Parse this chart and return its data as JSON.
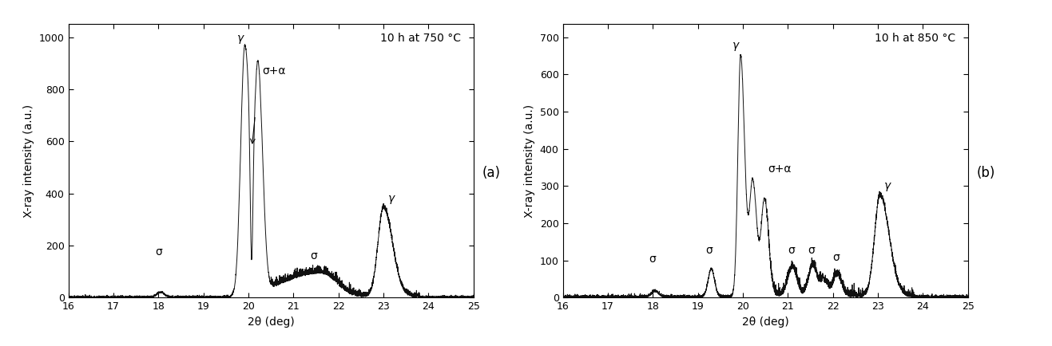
{
  "panel_a": {
    "title": "10 h at 750 °C",
    "xlabel": "2θ (deg)",
    "ylabel": "X-ray intensity (a.u.)",
    "xlim": [
      16,
      25
    ],
    "ylim": [
      0,
      1050
    ],
    "yticks": [
      0,
      200,
      400,
      600,
      800,
      1000
    ],
    "xticks": [
      16,
      17,
      18,
      19,
      20,
      21,
      22,
      23,
      24,
      25
    ]
  },
  "panel_b": {
    "title": "10 h at 850 °C",
    "xlabel": "2θ (deg)",
    "ylabel": "X-ray intensity (a.u.)",
    "xlim": [
      16,
      25
    ],
    "ylim": [
      0,
      735
    ],
    "yticks": [
      0,
      100,
      200,
      300,
      400,
      500,
      600,
      700
    ],
    "xticks": [
      16,
      17,
      18,
      19,
      20,
      21,
      22,
      23,
      24,
      25
    ]
  },
  "label_a": "(a)",
  "label_b": "(b)",
  "background_color": "#ffffff",
  "line_color": "#111111"
}
